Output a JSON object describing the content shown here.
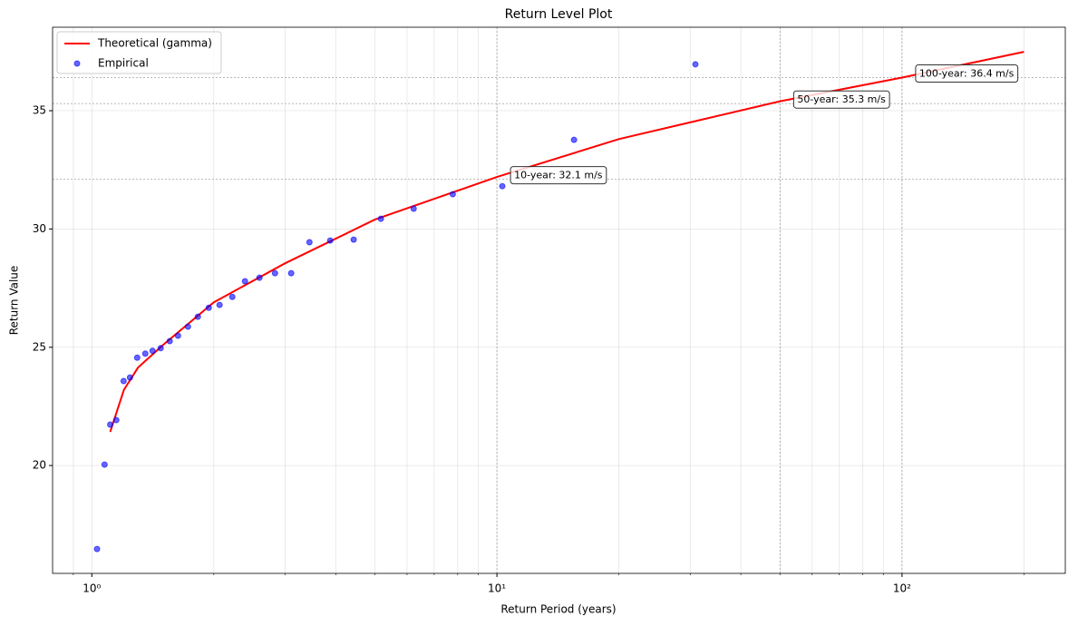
{
  "chart_data": {
    "type": "line",
    "title": "Return Level Plot",
    "x_label": "Return Period (years)",
    "y_label": "Return Value",
    "xscale": "log",
    "grid": true,
    "legend": "upper left",
    "xlim": [
      0.8,
      253
    ],
    "ylim": [
      15.44,
      38.53
    ],
    "xticks": [
      {
        "value": 1,
        "label": "10⁰"
      },
      {
        "value": 10,
        "label": "10¹"
      },
      {
        "value": 100,
        "label": "10²"
      }
    ],
    "xminorticks": [
      0.9,
      2,
      3,
      4,
      5,
      6,
      7,
      8,
      9,
      20,
      30,
      40,
      50,
      60,
      70,
      80,
      90,
      200
    ],
    "yticks": [
      20,
      25,
      30,
      35
    ],
    "series": [
      {
        "name": "Theoretical (gamma)",
        "type": "line",
        "color": "#ff0000",
        "x": [
          1.11,
          1.2,
          1.3,
          1.5,
          2,
          3,
          5,
          10,
          20,
          50,
          100,
          200
        ],
        "values": [
          21.42,
          23.2,
          24.14,
          25.1,
          26.9,
          28.55,
          30.4,
          32.2,
          33.8,
          35.4,
          36.4,
          37.49
        ]
      },
      {
        "name": "Empirical",
        "type": "scatter",
        "color": "#0000ff",
        "alpha": 0.6,
        "x": [
          1.03,
          1.075,
          1.11,
          1.149,
          1.198,
          1.242,
          1.294,
          1.355,
          1.412,
          1.479,
          1.557,
          1.632,
          1.727,
          1.827,
          1.944,
          2.067,
          2.222,
          2.388,
          2.593,
          2.832,
          3.105,
          3.445,
          3.875,
          4.43,
          5.17,
          6.23,
          7.78,
          10.31,
          15.5,
          30.9
        ],
        "values": [
          16.47,
          20.04,
          21.73,
          21.92,
          23.57,
          23.72,
          24.56,
          24.73,
          24.85,
          24.96,
          25.26,
          25.49,
          25.87,
          26.29,
          26.67,
          26.79,
          27.13,
          27.79,
          27.94,
          28.13,
          28.13,
          29.44,
          29.51,
          29.55,
          30.43,
          30.86,
          31.47,
          31.81,
          33.77,
          36.96
        ]
      }
    ],
    "return_levels": [
      {
        "period": 10,
        "value": 32.1,
        "label": "10-year: 32.1 m/s"
      },
      {
        "period": 50,
        "value": 35.3,
        "label": "50-year: 35.3 m/s"
      },
      {
        "period": 100,
        "value": 36.4,
        "label": "100-year: 36.4 m/s"
      }
    ]
  }
}
